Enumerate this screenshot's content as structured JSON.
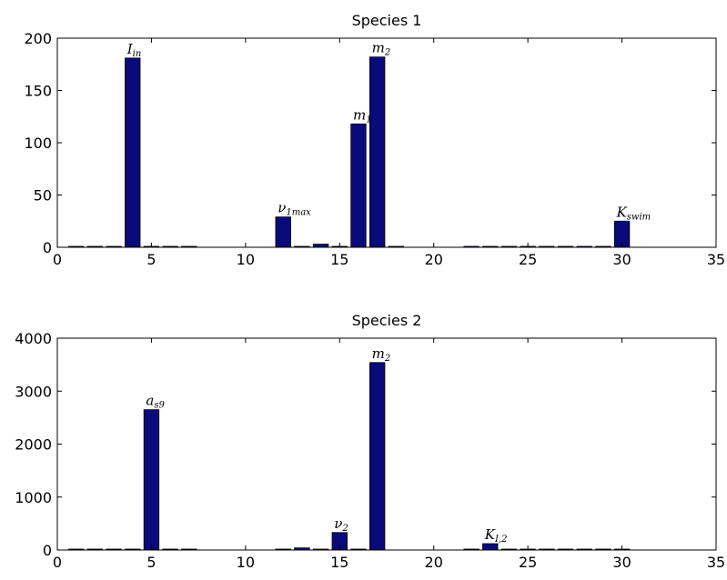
{
  "chart_data": [
    {
      "type": "bar",
      "title": "Species 1",
      "xlim": [
        0,
        35
      ],
      "ylim": [
        0,
        200
      ],
      "xticks": [
        0,
        5,
        10,
        15,
        20,
        25,
        30,
        35
      ],
      "yticks": [
        0,
        50,
        100,
        150,
        200
      ],
      "bar_color": "#0a0a7a",
      "x": [
        1,
        2,
        3,
        4,
        5,
        6,
        7,
        12,
        13,
        14,
        15,
        16,
        17,
        18,
        22,
        23,
        24,
        25,
        26,
        27,
        28,
        29,
        30
      ],
      "values": [
        0.5,
        0.5,
        0.5,
        181,
        0.5,
        0.5,
        0.5,
        29,
        0.5,
        3,
        0.5,
        118,
        182,
        0.5,
        0.5,
        0.5,
        0.5,
        0.5,
        0.5,
        0.5,
        0.5,
        0.5,
        25
      ],
      "annotations": [
        {
          "x": 4,
          "base": "I",
          "sub": "in"
        },
        {
          "x": 12,
          "base": "ν",
          "sub": "1max"
        },
        {
          "x": 16,
          "base": "m",
          "sub": "1"
        },
        {
          "x": 17,
          "base": "m",
          "sub": "2"
        },
        {
          "x": 30,
          "base": "K",
          "sub": "swim"
        }
      ]
    },
    {
      "type": "bar",
      "title": "Species 2",
      "xlim": [
        0,
        35
      ],
      "ylim": [
        0,
        4000
      ],
      "xticks": [
        0,
        5,
        10,
        15,
        20,
        25,
        30,
        35
      ],
      "yticks": [
        0,
        1000,
        2000,
        3000,
        4000
      ],
      "bar_color": "#0a0a7a",
      "x": [
        1,
        2,
        3,
        4,
        5,
        6,
        7,
        12,
        13,
        14,
        15,
        16,
        17,
        22,
        23,
        24,
        25,
        26,
        27,
        28,
        29,
        30
      ],
      "values": [
        10,
        10,
        10,
        10,
        2650,
        10,
        10,
        10,
        40,
        10,
        330,
        10,
        3540,
        10,
        120,
        10,
        10,
        10,
        10,
        10,
        10,
        10
      ],
      "annotations": [
        {
          "x": 5,
          "base": "a",
          "sub": "s9"
        },
        {
          "x": 15,
          "base": "ν",
          "sub": "2"
        },
        {
          "x": 17,
          "base": "m",
          "sub": "2"
        },
        {
          "x": 23,
          "base": "K",
          "sub": "I,2"
        }
      ]
    }
  ]
}
